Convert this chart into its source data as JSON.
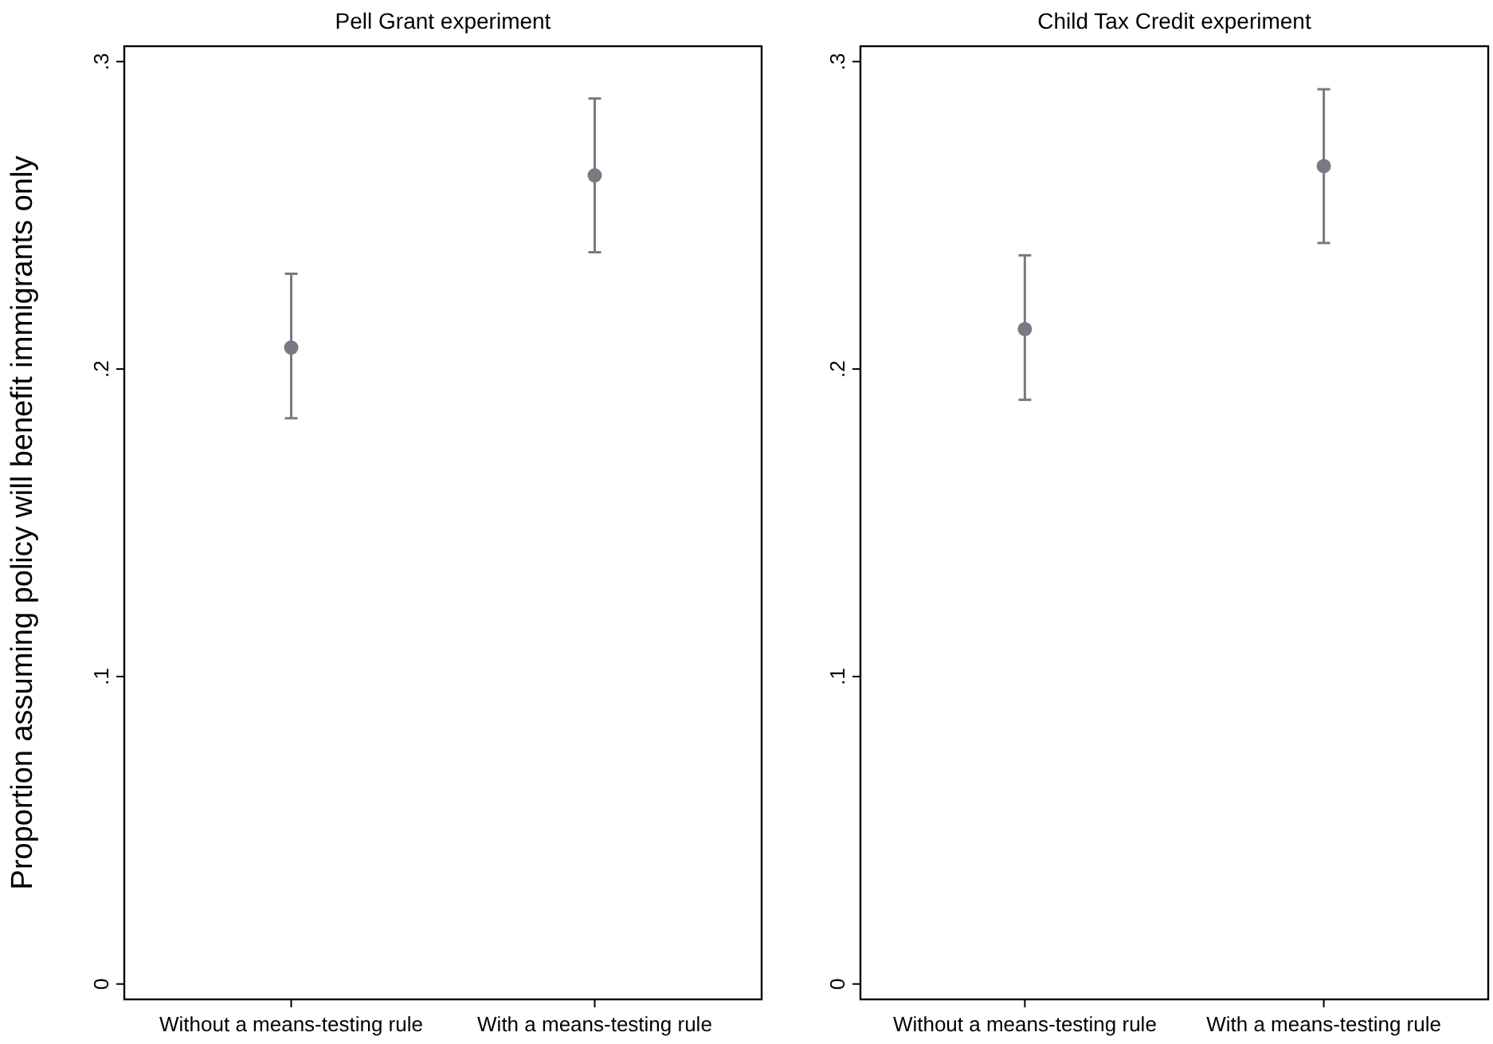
{
  "chart_data": [
    {
      "type": "scatter",
      "title": "Pell Grant experiment",
      "ylabel": "Proportion assuming policy will benefit immigrants only",
      "categories": [
        "Without a means-testing rule",
        "With a means-testing rule"
      ],
      "series": [
        {
          "color": "#777a80",
          "values": [
            0.207,
            0.263
          ],
          "errors": [
            [
              0.184,
              0.231
            ],
            [
              0.238,
              0.288
            ]
          ]
        }
      ],
      "ylim": [
        -0.005,
        0.305
      ],
      "yticks": [
        {
          "value": 0,
          "label": "0"
        },
        {
          "value": 0.1,
          "label": ".1"
        },
        {
          "value": 0.2,
          "label": ".2"
        },
        {
          "value": 0.3,
          "label": ".3"
        }
      ],
      "grid": false,
      "marker": "circle"
    },
    {
      "type": "scatter",
      "title": "Child Tax Credit experiment",
      "categories": [
        "Without a means-testing rule",
        "With a means-testing rule"
      ],
      "series": [
        {
          "color": "#777a80",
          "values": [
            0.213,
            0.266
          ],
          "errors": [
            [
              0.19,
              0.237
            ],
            [
              0.241,
              0.291
            ]
          ]
        }
      ],
      "ylim": [
        -0.005,
        0.305
      ],
      "yticks": [
        {
          "value": 0,
          "label": "0"
        },
        {
          "value": 0.1,
          "label": ".1"
        },
        {
          "value": 0.2,
          "label": ".2"
        },
        {
          "value": 0.3,
          "label": ".3"
        }
      ],
      "grid": false,
      "marker": "circle"
    }
  ]
}
